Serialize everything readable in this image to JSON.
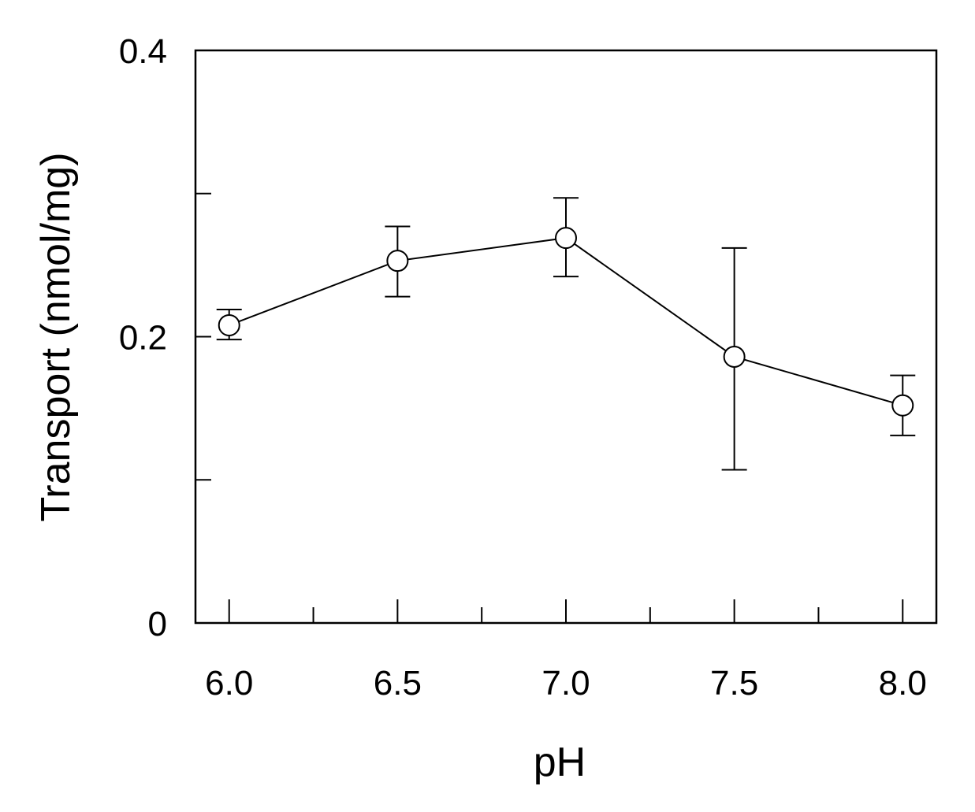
{
  "chart_data": {
    "type": "line",
    "xlabel": "pH",
    "ylabel": "Transport (nmol/mg)",
    "xlim": [
      5.9,
      8.1
    ],
    "ylim": [
      0,
      0.4
    ],
    "xticks": [
      6.0,
      6.5,
      7.0,
      7.5,
      8.0
    ],
    "xtick_labels": [
      "6.0",
      "6.5",
      "7.0",
      "7.5",
      "8.0"
    ],
    "xminor": [
      6.25,
      6.75,
      7.25,
      7.75
    ],
    "yticks": [
      0,
      0.1,
      0.2,
      0.3,
      0.4
    ],
    "ytick_labels": [
      "0",
      "",
      "0.2",
      "",
      "0.4"
    ],
    "grid": false,
    "marker": "open-circle",
    "series": [
      {
        "x": [
          6.0,
          6.5,
          7.0,
          7.5,
          8.0
        ],
        "y": [
          0.208,
          0.253,
          0.269,
          0.186,
          0.152
        ],
        "error_low": [
          0.198,
          0.228,
          0.242,
          0.107,
          0.131
        ],
        "error_high": [
          0.219,
          0.277,
          0.297,
          0.262,
          0.173
        ]
      }
    ]
  }
}
